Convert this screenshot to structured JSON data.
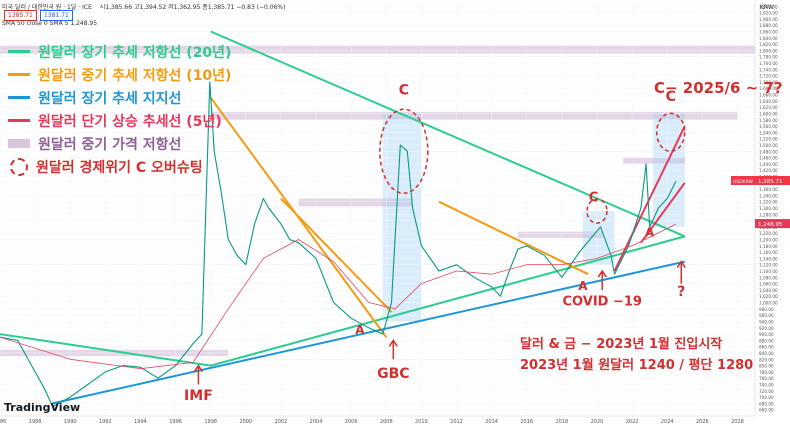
{
  "header": {
    "symbol": "미국 달러 / 대한민국 원 · 1달 · ICE",
    "ohlc": "시1,385.66 고1,394.52 저1,362.95 종1,385.71 −0.83 (−0.06%)",
    "sma": "SMA 50 close 0 SMA 5  1,248.95",
    "badge_left": "1385.71",
    "badge_right": "1381.71",
    "currency": "KRW"
  },
  "legend": [
    {
      "label": "원달러 장기 추세 저항선 (20년)",
      "color": "#2ecc8f",
      "kind": "line"
    },
    {
      "label": "원달러 중기 추세 저항선 (10년)",
      "color": "#f39c12",
      "kind": "line"
    },
    {
      "label": "원달러 장기 추세 지지선",
      "color": "#1e96d6",
      "kind": "line"
    },
    {
      "label": "원달러 단기 상승 추세선 (5년)",
      "color": "#e8385a",
      "kind": "line"
    },
    {
      "label": "원달러 중기 가격 저항선",
      "color": "#d9c5dc",
      "kind": "band"
    },
    {
      "label": "원달러 경제위기 C 오버슈팅",
      "color": "#d32f2f",
      "kind": "circle"
    }
  ],
  "annotations": {
    "c_marker": "C",
    "a_marker": "A",
    "imf": "IMF",
    "gbc": "GBC",
    "covid": "COVID −19",
    "question": "?",
    "forecast": "C− 2025/6 ~ 7?",
    "note1": "달러 & 금 − 2023년 1월 진입시작",
    "note2": "2023년 1월 원달러 1240 / 평단 1280"
  },
  "price_labels": {
    "last": "1,385.71",
    "sma": "1,248.95",
    "ticker": "USDKRW"
  },
  "watermark": "TradingView",
  "chart_data": {
    "type": "line",
    "title": "미국 달러 / 대한민국 원 · 1달 · ICE",
    "xlabel": "",
    "ylabel": "",
    "xlim": [
      1986,
      2029
    ],
    "ylim": [
      640,
      1960
    ],
    "y_ticks": [
      660,
      680,
      700,
      720,
      740,
      760,
      780,
      800,
      820,
      840,
      860,
      880,
      900,
      920,
      940,
      960,
      980,
      1000,
      1020,
      1040,
      1060,
      1080,
      1100,
      1120,
      1140,
      1160,
      1180,
      1200,
      1220,
      1240,
      1260,
      1280,
      1300,
      1320,
      1340,
      1360,
      1380,
      1400,
      1420,
      1440,
      1460,
      1480,
      1500,
      1520,
      1540,
      1560,
      1580,
      1600,
      1620,
      1640,
      1660,
      1680,
      1700,
      1720,
      1740,
      1760,
      1780,
      1800,
      1820,
      1840,
      1860,
      1880,
      1900,
      1920,
      1940
    ],
    "x_ticks": [
      1986,
      1988,
      1990,
      1992,
      1994,
      1996,
      1998,
      2000,
      2002,
      2004,
      2006,
      2008,
      2010,
      2012,
      2014,
      2016,
      2018,
      2020,
      2022,
      2024,
      2026,
      2028
    ],
    "grid": true,
    "series": [
      {
        "name": "USDKRW",
        "color": "#089981",
        "x": [
          1986.0,
          1987.0,
          1988.0,
          1988.5,
          1989.0,
          1990.0,
          1991.0,
          1992.0,
          1993.0,
          1994.0,
          1995.0,
          1996.0,
          1997.0,
          1997.5,
          1997.95,
          1998.2,
          1998.6,
          1999.0,
          1999.5,
          2000.0,
          2000.5,
          2001.0,
          2001.3,
          2002.0,
          2002.5,
          2003.0,
          2004.0,
          2005.0,
          2006.0,
          2007.0,
          2007.8,
          2008.3,
          2008.8,
          2009.2,
          2009.5,
          2010.0,
          2011.0,
          2012.0,
          2013.0,
          2014.0,
          2014.5,
          2015.0,
          2015.5,
          2016.0,
          2017.0,
          2018.0,
          2019.0,
          2020.2,
          2020.8,
          2021.0,
          2021.8,
          2022.5,
          2022.8,
          2023.0,
          2023.5,
          2024.0,
          2024.5
        ],
        "y": [
          890,
          880,
          780,
          730,
          670,
          700,
          740,
          780,
          800,
          795,
          760,
          800,
          870,
          900,
          1700,
          1480,
          1350,
          1200,
          1150,
          1120,
          1250,
          1330,
          1300,
          1250,
          1200,
          1190,
          1140,
          1000,
          950,
          920,
          900,
          1000,
          1500,
          1480,
          1300,
          1180,
          1100,
          1120,
          1080,
          1050,
          1020,
          1100,
          1170,
          1180,
          1150,
          1080,
          1160,
          1240,
          1150,
          1090,
          1180,
          1300,
          1440,
          1240,
          1300,
          1330,
          1385
        ]
      },
      {
        "name": "SMA 50",
        "color": "#e04a5f",
        "x": [
          1986,
          1990,
          1994,
          1997,
          1999,
          2001,
          2003,
          2005,
          2007,
          2008.5,
          2010,
          2012,
          2014,
          2016,
          2018,
          2020,
          2022,
          2024.5
        ],
        "y": [
          890,
          820,
          790,
          810,
          980,
          1140,
          1200,
          1130,
          1000,
          980,
          1060,
          1100,
          1090,
          1120,
          1120,
          1140,
          1180,
          1249
        ]
      }
    ],
    "trendlines": [
      {
        "name": "원달러 장기 추세 저항선 (20년)",
        "color": "#2ecc8f",
        "x": [
          1986.0,
          1998.0,
          2025.0
        ],
        "y": [
          900,
          800,
          1210
        ]
      },
      {
        "name": "원달러 장기 추세 저항선 (20년)",
        "color": "#2ecc8f",
        "x": [
          1998.0,
          2025.0
        ],
        "y": [
          1860,
          1210
        ]
      },
      {
        "name": "원달러 중기 추세 저항선 (10년)",
        "color": "#f39c12",
        "x": [
          1998.0,
          2008.0
        ],
        "y": [
          1650,
          890
        ]
      },
      {
        "name": "원달러 중기 추세 저항선 (10년)",
        "color": "#f39c12",
        "x": [
          2002.0,
          2008.3
        ],
        "y": [
          1330,
          970
        ]
      },
      {
        "name": "원달러 중기 추세 저항선 (10년)",
        "color": "#f39c12",
        "x": [
          2011.0,
          2019.5
        ],
        "y": [
          1320,
          1090
        ]
      },
      {
        "name": "원달러 장기 추세 지지선",
        "color": "#1e96d6",
        "x": [
          1989.0,
          2025.0
        ],
        "y": [
          680,
          1130
        ]
      },
      {
        "name": "원달러 단기 상승 추세선 (5년)",
        "color": "#e8385a",
        "x": [
          2021.0,
          2025.0
        ],
        "y": [
          1100,
          1560
        ]
      },
      {
        "name": "원달러 단기 상승 추세선 (5년)",
        "color": "#e8385a",
        "x": [
          2022.5,
          2025.0
        ],
        "y": [
          1190,
          1380
        ]
      }
    ],
    "resistance_bands": [
      {
        "x": [
          1986.0,
          2029.0
        ],
        "y": [
          1790,
          1815
        ]
      },
      {
        "x": [
          1998.0,
          2028.0
        ],
        "y": [
          1580,
          1605
        ]
      },
      {
        "x": [
          2003.0,
          2009.5
        ],
        "y": [
          1305,
          1330
        ]
      },
      {
        "x": [
          2015.5,
          2020.3
        ],
        "y": [
          1205,
          1225
        ]
      },
      {
        "x": [
          2021.5,
          2025.0
        ],
        "y": [
          1440,
          1460
        ]
      },
      {
        "x": [
          1986.0,
          1999.0
        ],
        "y": [
          830,
          850
        ]
      }
    ],
    "highlight_zones": [
      {
        "x": [
          2007.8,
          2010.0
        ],
        "y": [
          940,
          1600
        ]
      },
      {
        "x": [
          2019.2,
          2021.0
        ],
        "y": [
          1120,
          1290
        ]
      },
      {
        "x": [
          2023.2,
          2025.0
        ],
        "y": [
          1240,
          1600
        ]
      }
    ]
  }
}
